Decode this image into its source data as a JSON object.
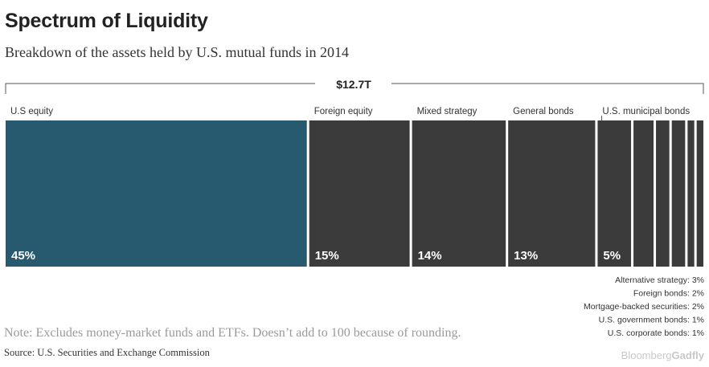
{
  "header": {
    "title": "Spectrum of Liquidity",
    "subtitle": "Breakdown of the assets held by U.S. mutual funds in 2014"
  },
  "footer": {
    "note": "Note: Excludes money-market funds and ETFs. Doesn’t add to 100 because of rounding.",
    "source": "Source: U.S. Securities and Exchange Commission",
    "brand_part1": "Bloomberg",
    "brand_part2": "Gadfly"
  },
  "chart_data": {
    "type": "bar",
    "total_label": "$12.7T",
    "categories": [
      "U.S equity",
      "Foreign equity",
      "Mixed strategy",
      "General bonds",
      "U.S. municipal bonds",
      "Alternative strategy",
      "Foreign bonds",
      "Mortgage-backed securities",
      "U.S. government bonds",
      "U.S. corporate bonds"
    ],
    "values": [
      45,
      15,
      14,
      13,
      5,
      3,
      2,
      2,
      1,
      1
    ],
    "value_labels": [
      "45%",
      "15%",
      "14%",
      "13%",
      "5%",
      "",
      "",
      "",
      "",
      ""
    ],
    "small_labels": [
      "Alternative strategy: 3%",
      "Foreign bonds: 2%",
      "Mortgage-backed securities: 2%",
      "U.S. government bonds: 1%",
      "U.S. corporate bonds: 1%"
    ],
    "colors": {
      "highlight": "#275a6f",
      "default": "#3b3b3c",
      "text_on_bar": "#ffffff",
      "bracket": "#555555"
    }
  }
}
